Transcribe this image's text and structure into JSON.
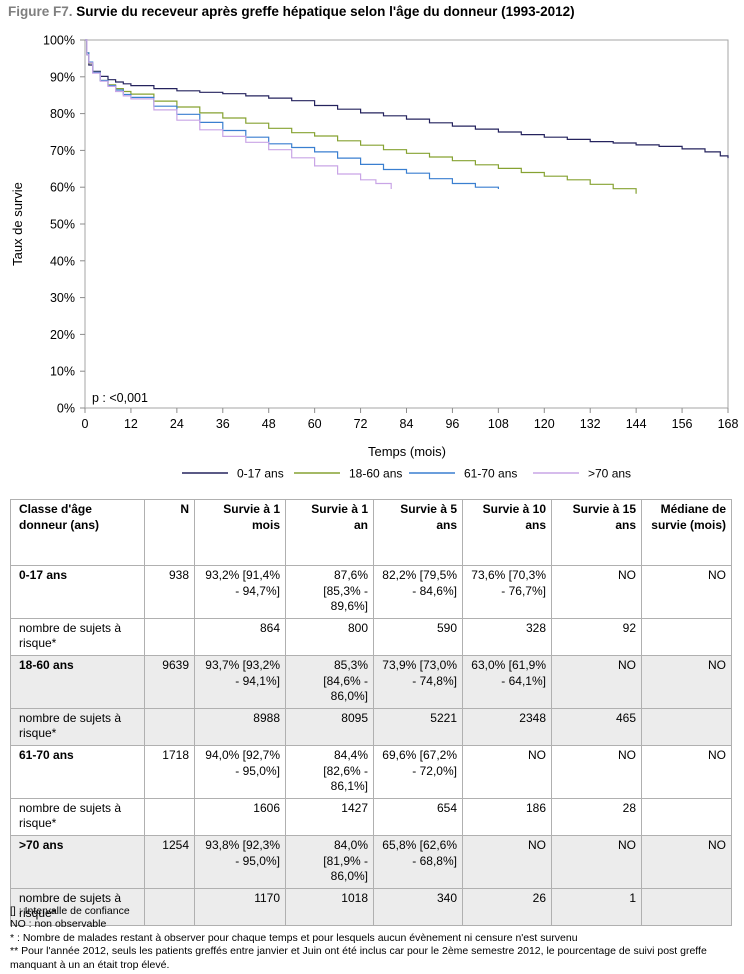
{
  "figure": {
    "label": "Figure F7.",
    "title": "Survie du receveur après greffe hépatique selon l'âge du donneur (1993-2012)"
  },
  "chart_data": {
    "type": "line",
    "xlabel": "Temps (mois)",
    "ylabel": "Taux de survie",
    "xlim": [
      0,
      168
    ],
    "ylim": [
      0,
      100
    ],
    "x_ticks": [
      0,
      12,
      24,
      36,
      48,
      60,
      72,
      84,
      96,
      108,
      120,
      132,
      144,
      156,
      168
    ],
    "y_ticks": [
      0,
      10,
      20,
      30,
      40,
      50,
      60,
      70,
      80,
      90,
      100
    ],
    "y_tick_labels": [
      "0%",
      "10%",
      "20%",
      "30%",
      "40%",
      "50%",
      "60%",
      "70%",
      "80%",
      "90%",
      "100%"
    ],
    "annotation": "p : <0,001",
    "grid": false,
    "legend_position": "bottom",
    "series": [
      {
        "name": "0-17 ans",
        "color": "#25235e",
        "points": [
          [
            0,
            100
          ],
          [
            0.5,
            96
          ],
          [
            1,
            93.2
          ],
          [
            2,
            91.5
          ],
          [
            4,
            90.1
          ],
          [
            6,
            89.2
          ],
          [
            8,
            88.6
          ],
          [
            10,
            88.1
          ],
          [
            12,
            87.6
          ],
          [
            18,
            86.8
          ],
          [
            24,
            86.2
          ],
          [
            30,
            85.8
          ],
          [
            36,
            85.4
          ],
          [
            42,
            84.8
          ],
          [
            48,
            84.2
          ],
          [
            54,
            83.5
          ],
          [
            60,
            82.2
          ],
          [
            66,
            81.2
          ],
          [
            72,
            80.2
          ],
          [
            78,
            79.4
          ],
          [
            84,
            78.5
          ],
          [
            90,
            77.5
          ],
          [
            96,
            76.6
          ],
          [
            102,
            75.8
          ],
          [
            108,
            75.0
          ],
          [
            114,
            74.3
          ],
          [
            120,
            73.6
          ],
          [
            126,
            73.0
          ],
          [
            132,
            72.4
          ],
          [
            138,
            72.0
          ],
          [
            144,
            71.5
          ],
          [
            150,
            71.1
          ],
          [
            156,
            70.4
          ],
          [
            162,
            69.6
          ],
          [
            166,
            68.5
          ],
          [
            168,
            67.9
          ]
        ]
      },
      {
        "name": "18-60 ans",
        "color": "#86a232",
        "points": [
          [
            0,
            100
          ],
          [
            0.5,
            96.5
          ],
          [
            1,
            93.7
          ],
          [
            2,
            91.2
          ],
          [
            4,
            89.0
          ],
          [
            6,
            87.8
          ],
          [
            8,
            86.8
          ],
          [
            10,
            86.0
          ],
          [
            12,
            85.3
          ],
          [
            18,
            83.4
          ],
          [
            24,
            81.8
          ],
          [
            30,
            80.2
          ],
          [
            36,
            78.8
          ],
          [
            42,
            77.4
          ],
          [
            48,
            76.0
          ],
          [
            54,
            74.8
          ],
          [
            60,
            73.9
          ],
          [
            66,
            72.6
          ],
          [
            72,
            71.4
          ],
          [
            78,
            70.2
          ],
          [
            84,
            69.2
          ],
          [
            90,
            68.2
          ],
          [
            96,
            67.2
          ],
          [
            102,
            66.1
          ],
          [
            108,
            65.1
          ],
          [
            114,
            64.0
          ],
          [
            120,
            63.0
          ],
          [
            126,
            62.0
          ],
          [
            132,
            60.8
          ],
          [
            138,
            59.6
          ],
          [
            144,
            58.2
          ]
        ]
      },
      {
        "name": "61-70 ans",
        "color": "#3a7fd0",
        "points": [
          [
            0,
            100
          ],
          [
            0.5,
            96.5
          ],
          [
            1,
            94.0
          ],
          [
            2,
            91.2
          ],
          [
            4,
            89.0
          ],
          [
            6,
            87.6
          ],
          [
            8,
            86.4
          ],
          [
            10,
            85.2
          ],
          [
            12,
            84.4
          ],
          [
            18,
            82.0
          ],
          [
            24,
            79.8
          ],
          [
            30,
            77.6
          ],
          [
            36,
            75.4
          ],
          [
            42,
            73.6
          ],
          [
            48,
            71.8
          ],
          [
            54,
            70.8
          ],
          [
            60,
            69.6
          ],
          [
            66,
            67.9
          ],
          [
            72,
            66.2
          ],
          [
            78,
            64.8
          ],
          [
            84,
            63.8
          ],
          [
            90,
            62.3
          ],
          [
            96,
            61.0
          ],
          [
            102,
            60.0
          ],
          [
            108,
            59.5
          ]
        ]
      },
      {
        "name": ">70 ans",
        "color": "#c9a5e6",
        "points": [
          [
            0,
            100
          ],
          [
            0.5,
            96
          ],
          [
            1,
            93.8
          ],
          [
            2,
            91.0
          ],
          [
            4,
            88.8
          ],
          [
            6,
            87.4
          ],
          [
            8,
            86.0
          ],
          [
            10,
            84.8
          ],
          [
            12,
            84.0
          ],
          [
            18,
            81.0
          ],
          [
            24,
            78.2
          ],
          [
            30,
            75.6
          ],
          [
            36,
            73.8
          ],
          [
            42,
            72.2
          ],
          [
            48,
            70.2
          ],
          [
            54,
            68.0
          ],
          [
            60,
            65.8
          ],
          [
            66,
            63.6
          ],
          [
            72,
            62.0
          ],
          [
            76,
            61.0
          ],
          [
            80,
            59.5
          ]
        ]
      }
    ]
  },
  "table": {
    "headers": [
      "Classe d'âge donneur (ans)",
      "N",
      "Survie à 1 mois",
      "Survie à 1 an",
      "Survie à 5 ans",
      "Survie à 10 ans",
      "Survie à 15 ans",
      "Médiane de survie (mois)"
    ],
    "rows": [
      {
        "kind": "group",
        "shade": false,
        "cells": [
          "0-17 ans",
          "938",
          "93,2% [91,4% - 94,7%]",
          "87,6% [85,3% - 89,6%]",
          "82,2% [79,5% - 84,6%]",
          "73,6% [70,3% - 76,7%]",
          "NO",
          "NO"
        ]
      },
      {
        "kind": "risk",
        "shade": false,
        "cells": [
          "nombre de sujets à risque*",
          "",
          "864",
          "800",
          "590",
          "328",
          "92",
          ""
        ]
      },
      {
        "kind": "group",
        "shade": true,
        "cells": [
          "18-60 ans",
          "9639",
          "93,7% [93,2% - 94,1%]",
          "85,3% [84,6% - 86,0%]",
          "73,9% [73,0% - 74,8%]",
          "63,0% [61,9% - 64,1%]",
          "NO",
          "NO"
        ]
      },
      {
        "kind": "risk",
        "shade": true,
        "cells": [
          "nombre de sujets à risque*",
          "",
          "8988",
          "8095",
          "5221",
          "2348",
          "465",
          ""
        ]
      },
      {
        "kind": "group",
        "shade": false,
        "cells": [
          "61-70 ans",
          "1718",
          "94,0% [92,7% - 95,0%]",
          "84,4% [82,6% - 86,1%]",
          "69,6% [67,2% - 72,0%]",
          "NO",
          "NO",
          "NO"
        ]
      },
      {
        "kind": "risk",
        "shade": false,
        "cells": [
          "nombre de sujets à risque*",
          "",
          "1606",
          "1427",
          "654",
          "186",
          "28",
          ""
        ]
      },
      {
        "kind": "group",
        "shade": true,
        "cells": [
          ">70 ans",
          "1254",
          "93,8% [92,3% - 95,0%]",
          "84,0% [81,9% - 86,0%]",
          "65,8% [62,6% - 68,8%]",
          "NO",
          "NO",
          "NO"
        ]
      },
      {
        "kind": "risk",
        "shade": true,
        "cells": [
          "nombre de sujets à risque*",
          "",
          "1170",
          "1018",
          "340",
          "26",
          "1",
          ""
        ]
      }
    ]
  },
  "notes": [
    "[] : Intervalle de confiance",
    "NO : non observable",
    "* : Nombre de malades restant à observer pour chaque temps et pour lesquels aucun évènement ni censure n'est survenu",
    "** Pour l'année 2012, seuls les patients greffés entre janvier et Juin ont été inclus car pour le 2ème semestre 2012, le pourcentage de suivi post greffe manquant à un an était trop élevé."
  ]
}
